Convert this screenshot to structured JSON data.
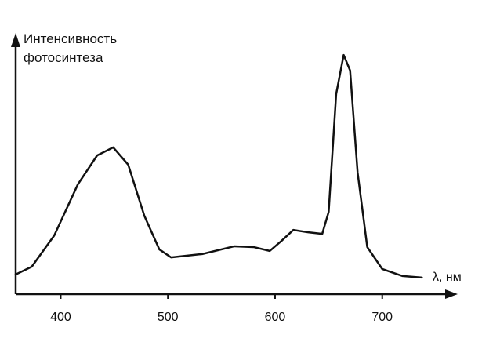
{
  "chart_data": {
    "type": "line",
    "ylabel": "Интенсивность фотосинтеза",
    "xlabel": "λ, нм",
    "x": [
      358,
      373,
      394,
      416,
      434,
      449,
      463,
      478,
      492,
      503,
      532,
      562,
      580,
      595,
      606,
      617,
      631,
      644,
      650,
      657,
      664,
      670,
      677,
      686,
      700,
      719,
      737
    ],
    "series": [
      {
        "color": "#111111",
        "values": [
          7.6,
          10.6,
          22.7,
          42.4,
          53.6,
          56.7,
          50,
          30.3,
          17.3,
          14.2,
          15.5,
          18.5,
          18.2,
          16.7,
          20.6,
          24.8,
          23.9,
          23.3,
          31.8,
          77.3,
          92.4,
          86.4,
          47,
          18.2,
          9.7,
          7,
          6.4
        ]
      }
    ],
    "xlim": [
      358,
      766
    ],
    "xticks": [
      400,
      500,
      600,
      700
    ],
    "ylim": [
      0,
      100
    ]
  }
}
